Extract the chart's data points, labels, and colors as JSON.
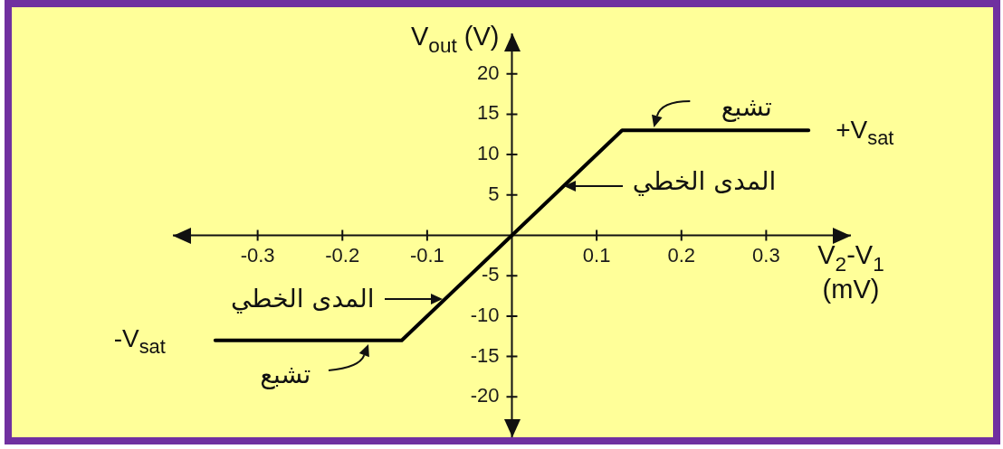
{
  "chart_data": {
    "type": "line",
    "xlabel": "V$_{2}$-V$_{1}$ (mV)",
    "ylabel": "V$_{out}$ (V)",
    "x": [
      -0.35,
      -0.13,
      0,
      0.13,
      0.35
    ],
    "values": [
      -13,
      -13,
      0,
      13,
      13
    ],
    "color": "#000000",
    "xlim": [
      -0.4,
      0.4
    ],
    "ylim": [
      -25,
      25
    ],
    "xticks": [
      -0.3,
      -0.2,
      -0.1,
      0.1,
      0.2,
      0.3
    ],
    "yticks": [
      -20,
      -15,
      -10,
      -5,
      5,
      10,
      15,
      20
    ],
    "annotations": [
      {
        "text": "تشبع",
        "x": 0.17,
        "y": 13
      },
      {
        "text": "+V$_{sat}$",
        "x": 0.35,
        "y": 13
      },
      {
        "text": "المدى الخطي",
        "x": 0.06,
        "y": 6
      },
      {
        "text": "المدى الخطي",
        "x": -0.08,
        "y": -8
      },
      {
        "text": "-V$_{sat}$",
        "x": -0.35,
        "y": -13
      },
      {
        "text": "تشبع",
        "x": -0.17,
        "y": -13
      }
    ]
  }
}
